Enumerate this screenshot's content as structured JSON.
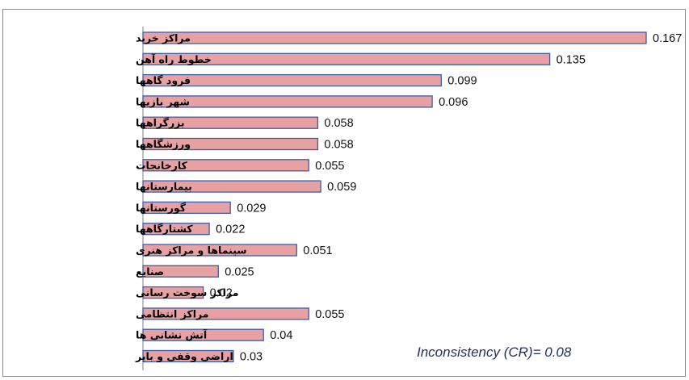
{
  "chart_data": {
    "type": "bar",
    "orientation": "horizontal",
    "categories": [
      "مراکز خرید",
      "خطوط راه آهن",
      "فرود گاهها",
      "شهر بازیها",
      "بزرگراهها",
      "ورزشگاهها",
      "کارخانجات",
      "بیمارستانها",
      "گورستانها",
      "کشتارگاهها",
      "سینماها و مراکز هنری",
      "صنایع",
      "مراکز سوخت رسانی",
      "مراکز انتظامی",
      "آتش نشانی ها",
      "اراضی وقفی و بایر"
    ],
    "values": [
      0.167,
      0.135,
      0.099,
      0.096,
      0.058,
      0.058,
      0.055,
      0.059,
      0.029,
      0.022,
      0.051,
      0.025,
      0.02,
      0.055,
      0.04,
      0.03
    ],
    "value_labels": [
      "0.167",
      "0.135",
      "0.099",
      "0.096",
      "0.058",
      "0.058",
      "0.055",
      "0.059",
      "0.029",
      "0.022",
      "0.051",
      "0.025",
      "0.02",
      "0.055",
      "0.04",
      "0.03"
    ],
    "xlim": [
      0,
      0.167
    ],
    "annotation": "Inconsistency (CR)= 0.08",
    "grid": false,
    "legend": "none",
    "bar_color": "#e8a1a3",
    "bar_edge_color": "#3b5ea8"
  }
}
